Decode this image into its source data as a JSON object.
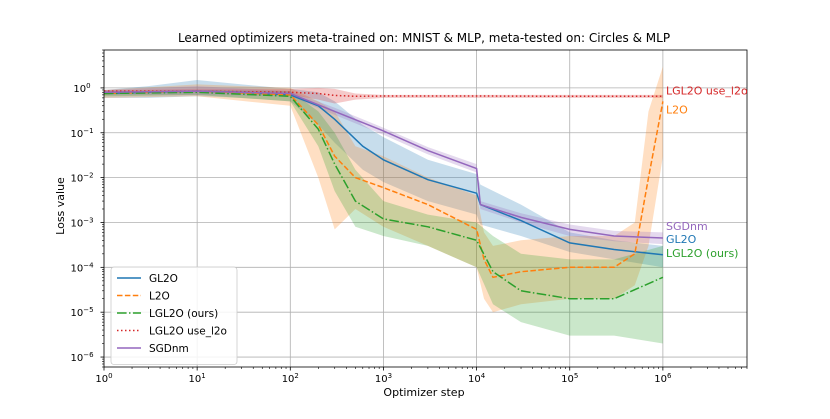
{
  "chart_data": {
    "type": "line",
    "title": "Learned optimizers meta-trained on: MNIST & MLP, meta-tested on: Circles & MLP",
    "xlabel": "Optimizer step",
    "ylabel": "Loss value",
    "xscale": "log",
    "yscale": "log",
    "xlim": [
      1,
      8000000
    ],
    "ylim": [
      6e-07,
      7
    ],
    "grid": true,
    "legend_position": "bottom-left",
    "x_ticks": [
      {
        "value": 1,
        "base": "10",
        "exp": "0"
      },
      {
        "value": 10,
        "base": "10",
        "exp": "1"
      },
      {
        "value": 100,
        "base": "10",
        "exp": "2"
      },
      {
        "value": 1000,
        "base": "10",
        "exp": "3"
      },
      {
        "value": 10000,
        "base": "10",
        "exp": "4"
      },
      {
        "value": 100000,
        "base": "10",
        "exp": "5"
      },
      {
        "value": 1000000,
        "base": "10",
        "exp": "6"
      }
    ],
    "y_ticks": [
      {
        "value": 1,
        "base": "10",
        "exp": "0"
      },
      {
        "value": 0.1,
        "base": "10",
        "exp": "−1"
      },
      {
        "value": 0.01,
        "base": "10",
        "exp": "−2"
      },
      {
        "value": 0.001,
        "base": "10",
        "exp": "−3"
      },
      {
        "value": 0.0001,
        "base": "10",
        "exp": "−4"
      },
      {
        "value": 1e-05,
        "base": "10",
        "exp": "−5"
      },
      {
        "value": 1e-06,
        "base": "10",
        "exp": "−6"
      }
    ],
    "series": [
      {
        "name": "GL2O",
        "end_label": "GL2O",
        "color": "#1f77b4",
        "dash": "solid",
        "x": [
          1,
          3,
          10,
          30,
          100,
          200,
          300,
          600,
          1000,
          3000,
          10000,
          11000,
          30000,
          100000,
          300000,
          1000000
        ],
        "y": [
          0.75,
          0.8,
          0.85,
          0.8,
          0.7,
          0.4,
          0.2,
          0.05,
          0.025,
          0.009,
          0.0045,
          0.0025,
          0.0011,
          0.00035,
          0.00025,
          0.00019
        ],
        "band_low": [
          0.6,
          0.6,
          0.65,
          0.6,
          0.5,
          0.15,
          0.06,
          0.015,
          0.008,
          0.003,
          0.0015,
          0.0009,
          0.0005,
          0.00022,
          0.00015,
          0.0001
        ],
        "band_high": [
          0.9,
          1.1,
          1.5,
          1.2,
          0.95,
          0.8,
          0.5,
          0.15,
          0.08,
          0.025,
          0.012,
          0.007,
          0.0025,
          0.0006,
          0.0004,
          0.0003
        ]
      },
      {
        "name": "L2O",
        "end_label": "L2O",
        "color": "#ff7f0e",
        "dash": "dashed",
        "x": [
          1,
          10,
          100,
          200,
          300,
          500,
          1000,
          3000,
          10000,
          12000,
          15000,
          30000,
          100000,
          300000,
          500000,
          700000,
          1000000
        ],
        "y": [
          0.75,
          0.85,
          0.7,
          0.15,
          0.03,
          0.01,
          0.006,
          0.0025,
          0.0007,
          0.00015,
          6e-05,
          8e-05,
          0.0001,
          0.0001,
          0.0002,
          0.01,
          0.5
        ],
        "band_low": [
          0.6,
          0.65,
          0.4,
          0.01,
          0.0007,
          0.002,
          0.0008,
          0.0003,
          0.0001,
          2e-05,
          1e-05,
          1.5e-05,
          2e-05,
          2e-05,
          4e-05,
          0.0003,
          0.03
        ],
        "band_high": [
          0.9,
          1.2,
          1,
          0.5,
          0.3,
          0.05,
          0.03,
          0.01,
          0.004,
          0.0006,
          0.0003,
          0.0004,
          0.0005,
          0.0005,
          0.001,
          0.3,
          3
        ]
      },
      {
        "name": "LGL2O (ours)",
        "end_label": "LGL2O (ours)",
        "color": "#2ca02c",
        "dash": "dashdot",
        "x": [
          1,
          10,
          100,
          200,
          300,
          500,
          1000,
          3000,
          10000,
          15000,
          30000,
          100000,
          300000,
          1000000
        ],
        "y": [
          0.75,
          0.8,
          0.65,
          0.12,
          0.02,
          0.003,
          0.0012,
          0.0008,
          0.0004,
          8e-05,
          3e-05,
          2e-05,
          2e-05,
          6e-05
        ],
        "band_low": [
          0.65,
          0.7,
          0.5,
          0.05,
          0.005,
          0.0008,
          0.0005,
          0.0003,
          0.0001,
          1.5e-05,
          6e-06,
          3e-06,
          3e-06,
          2e-06
        ],
        "band_high": [
          0.85,
          0.9,
          0.85,
          0.3,
          0.1,
          0.015,
          0.003,
          0.0015,
          0.001,
          0.0005,
          0.0002,
          0.00015,
          0.00015,
          0.0003
        ]
      },
      {
        "name": "LGL2O use_l2o",
        "end_label": "LGL2O use_l2o",
        "color": "#d62728",
        "dash": "dotted",
        "x": [
          1,
          10,
          100,
          200,
          300,
          500,
          1000,
          10000,
          100000,
          1000000
        ],
        "y": [
          0.85,
          0.85,
          0.8,
          0.75,
          0.68,
          0.65,
          0.66,
          0.66,
          0.65,
          0.65
        ],
        "band_low": [
          0.8,
          0.8,
          0.7,
          0.55,
          0.45,
          0.55,
          0.6,
          0.6,
          0.6,
          0.6
        ],
        "band_high": [
          0.9,
          0.95,
          0.95,
          1,
          0.95,
          0.75,
          0.7,
          0.7,
          0.7,
          0.7
        ]
      },
      {
        "name": "SGDnm",
        "end_label": "SGDnm",
        "color": "#9467bd",
        "dash": "solid",
        "x": [
          1,
          10,
          100,
          300,
          1000,
          3000,
          10000,
          11000,
          30000,
          100000,
          300000,
          1000000
        ],
        "y": [
          0.8,
          0.85,
          0.75,
          0.3,
          0.11,
          0.04,
          0.016,
          0.0025,
          0.0013,
          0.0007,
          0.0005,
          0.00045
        ],
        "band_low": [
          0.7,
          0.7,
          0.65,
          0.25,
          0.09,
          0.033,
          0.013,
          0.002,
          0.001,
          0.0005,
          0.00038,
          0.00033
        ],
        "band_high": [
          0.9,
          1.1,
          0.85,
          0.36,
          0.13,
          0.048,
          0.02,
          0.003,
          0.0016,
          0.0009,
          0.00065,
          0.0006
        ]
      }
    ]
  }
}
